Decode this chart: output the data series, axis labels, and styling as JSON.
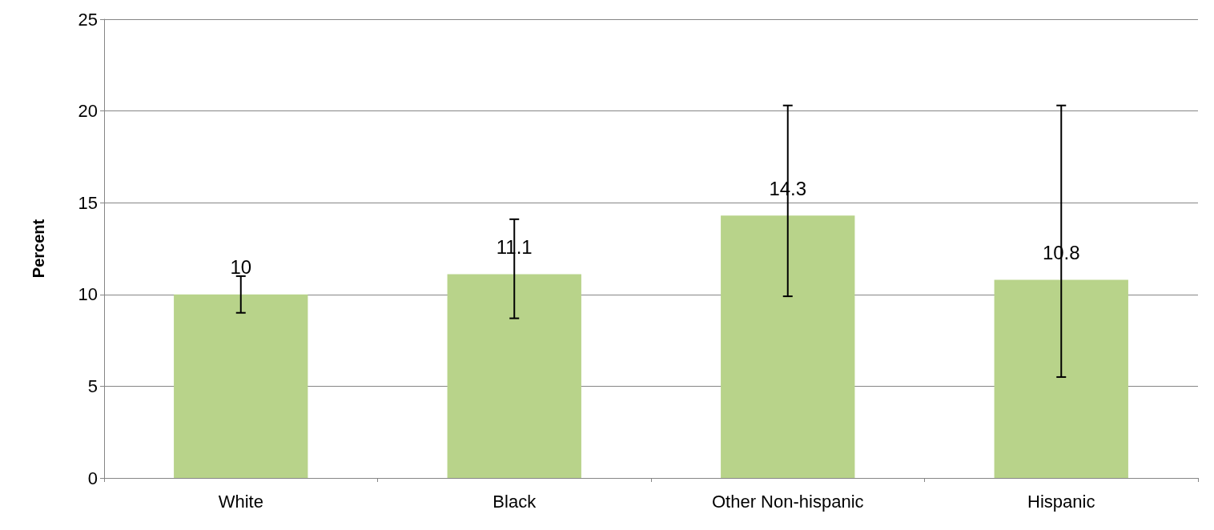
{
  "chart_data": {
    "type": "bar",
    "ylabel": "Percent",
    "categories": [
      "White",
      "Black",
      "Other Non-hispanic",
      "Hispanic"
    ],
    "values": [
      10,
      11.1,
      14.3,
      10.8
    ],
    "errors": [
      [
        9,
        11
      ],
      [
        8.7,
        14.1
      ],
      [
        9.9,
        20.3
      ],
      [
        5.5,
        20.3
      ]
    ],
    "color": "#b8d38a",
    "ylim": [
      0,
      25
    ],
    "yticks": [
      0,
      5,
      10,
      15,
      20,
      25
    ],
    "grid": "y",
    "data_labels": true
  }
}
